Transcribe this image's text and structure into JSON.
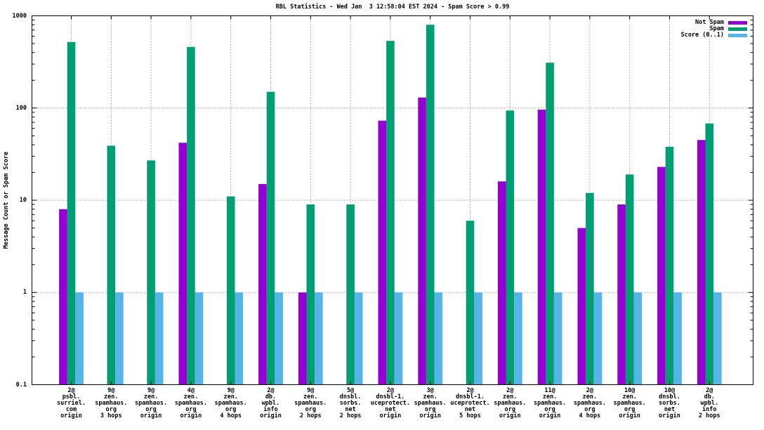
{
  "title": "RBL Statistics - Wed Jan  3 12:58:04 EST 2024 - Spam Score > 0.99",
  "y_axis_label": "Message Count or Spam Score",
  "colors": {
    "not_spam": "#9400d3",
    "spam": "#009e73",
    "score": "#56b4e9",
    "grid": "#a8a8a8",
    "axis": "#000000",
    "background": "#ffffff"
  },
  "chart_data": {
    "type": "bar",
    "title": "RBL Statistics - Wed Jan  3 12:58:04 EST 2024 - Spam Score > 0.99",
    "xlabel": "",
    "ylabel": "Message Count or Spam Score",
    "y_scale": "log",
    "ylim": [
      0.1,
      1000
    ],
    "grid": true,
    "legend_position": "top-right-inside",
    "yticks": [
      {
        "value": 0.1,
        "label": "0.1"
      },
      {
        "value": 1,
        "label": "1"
      },
      {
        "value": 10,
        "label": "10"
      },
      {
        "value": 100,
        "label": "100"
      },
      {
        "value": 1000,
        "label": "1000"
      }
    ],
    "categories": [
      [
        "2@",
        "psbl.",
        "surriel.",
        "com",
        "origin"
      ],
      [
        "9@",
        "zen.",
        "spamhaus.",
        "org",
        "3 hops"
      ],
      [
        "9@",
        "zen.",
        "spamhaus.",
        "org",
        "origin"
      ],
      [
        "4@",
        "zen.",
        "spamhaus.",
        "org",
        "origin"
      ],
      [
        "9@",
        "zen.",
        "spamhaus.",
        "org",
        "4 hops"
      ],
      [
        "2@",
        "db.",
        "wpbl.",
        "info",
        "origin"
      ],
      [
        "9@",
        "zen.",
        "spamhaus.",
        "org",
        "2 hops"
      ],
      [
        "5@",
        "dnsbl.",
        "sorbs.",
        "net",
        "2 hops"
      ],
      [
        "2@",
        "dnsbl-1.",
        "uceprotect.",
        "net",
        "origin"
      ],
      [
        "3@",
        "zen.",
        "spamhaus.",
        "org",
        "origin"
      ],
      [
        "2@",
        "dnsbl-1.",
        "uceprotect.",
        "net",
        "5 hops"
      ],
      [
        "2@",
        "zen.",
        "spamhaus.",
        "org",
        "origin"
      ],
      [
        "11@",
        "zen.",
        "spamhaus.",
        "org",
        "origin"
      ],
      [
        "2@",
        "zen.",
        "spamhaus.",
        "org",
        "4 hops"
      ],
      [
        "10@",
        "zen.",
        "spamhaus.",
        "org",
        "origin"
      ],
      [
        "10@",
        "dnsbl.",
        "sorbs.",
        "net",
        "origin"
      ],
      [
        "2@",
        "db.",
        "wpbl.",
        "info",
        "2 hops"
      ]
    ],
    "series": [
      {
        "name": "Not Spam",
        "color": "#9400d3",
        "values": [
          8,
          null,
          null,
          42,
          null,
          15,
          1,
          null,
          73,
          130,
          null,
          16,
          96,
          5,
          9,
          23,
          45
        ]
      },
      {
        "name": "Spam",
        "color": "#009e73",
        "values": [
          520,
          39,
          27,
          460,
          11,
          150,
          9,
          9,
          535,
          800,
          6,
          94,
          310,
          12,
          19,
          38,
          68
        ]
      },
      {
        "name": "Score (0..1)",
        "color": "#56b4e9",
        "values": [
          1,
          1,
          1,
          1,
          1,
          1,
          1,
          1,
          1,
          1,
          1,
          1,
          1,
          1,
          1,
          1,
          1
        ]
      }
    ]
  }
}
